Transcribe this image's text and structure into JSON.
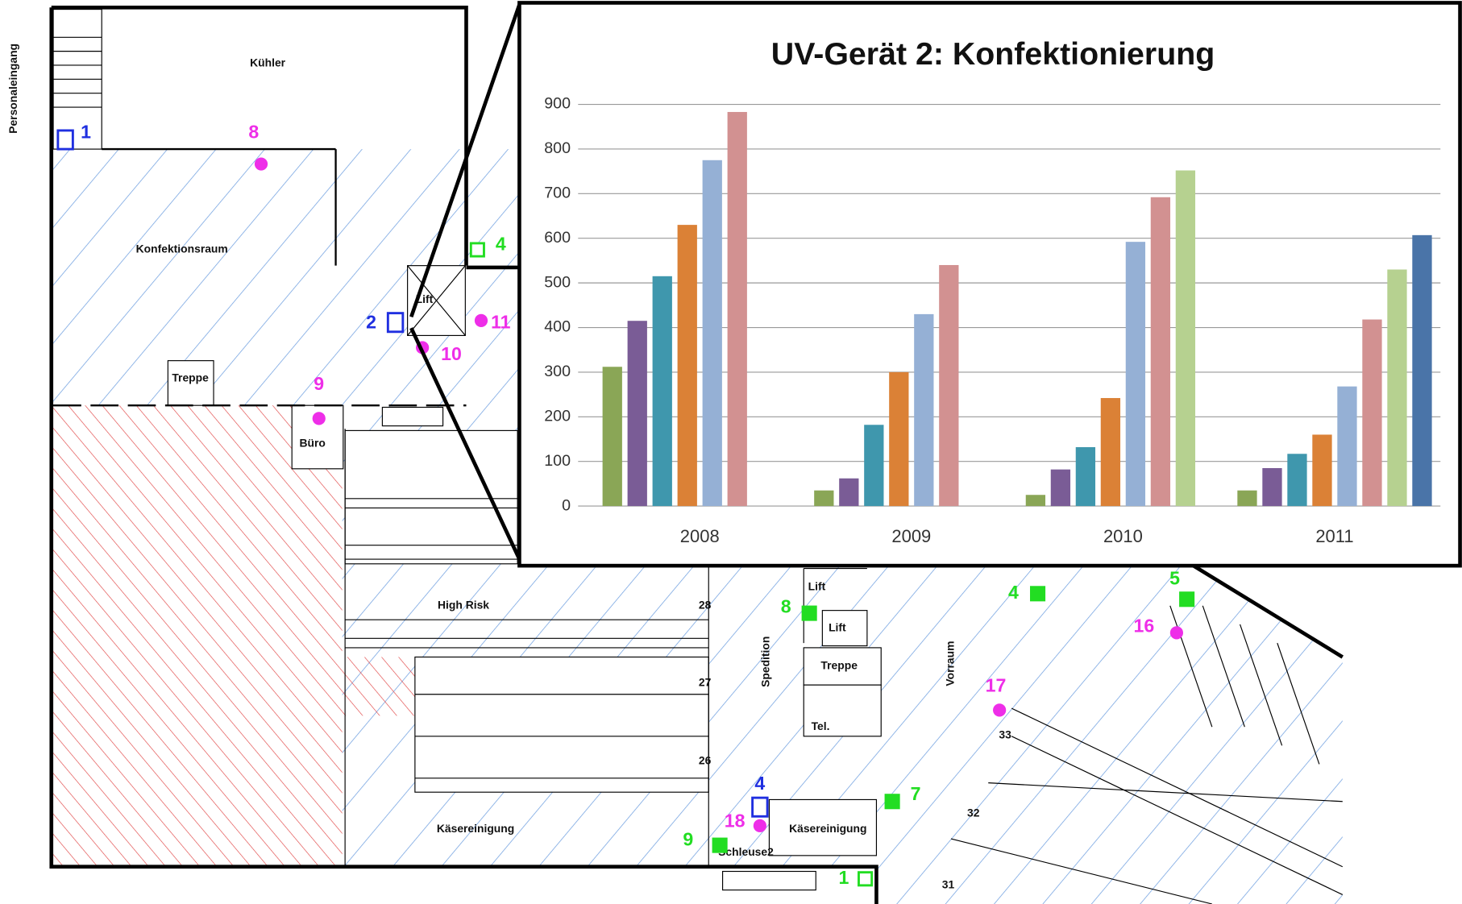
{
  "chart_data": {
    "type": "bar",
    "title": "UV-Gerät 2: Konfektionierung",
    "categories": [
      "2008",
      "2009",
      "2010",
      "2011"
    ],
    "series": [
      {
        "color": "#8aa656",
        "values": [
          312,
          35,
          25,
          35
        ]
      },
      {
        "color": "#7a5c96",
        "values": [
          415,
          62,
          82,
          85
        ]
      },
      {
        "color": "#3f97ad",
        "values": [
          515,
          182,
          132,
          117
        ]
      },
      {
        "color": "#db8136",
        "values": [
          630,
          300,
          242,
          160
        ]
      },
      {
        "color": "#95b0d5",
        "values": [
          775,
          430,
          592,
          268
        ]
      },
      {
        "color": "#d29191",
        "values": [
          883,
          540,
          692,
          418
        ]
      },
      {
        "color": "#b6d190",
        "values": [
          null,
          null,
          752,
          530
        ]
      },
      {
        "color": "#4a74a8",
        "values": [
          null,
          null,
          null,
          607
        ]
      }
    ],
    "ylim": [
      0,
      900
    ],
    "yticks": [
      0,
      100,
      200,
      300,
      400,
      500,
      600,
      700,
      800,
      900
    ],
    "grid": true
  },
  "floor_plan": {
    "rooms": [
      "Personaleingang",
      "Kühler",
      "Konfektionsraum",
      "Treppe",
      "Büro",
      "Lift",
      "High Risk",
      "Käsereinigung",
      "Käsereinigung",
      "Spedition",
      "Vorraum",
      "Lift",
      "Lift",
      "Treppe",
      "Tel.",
      "Schleuse2",
      "28",
      "27",
      "26",
      "33",
      "32",
      "31"
    ],
    "pink_points": [
      "8",
      "9",
      "10",
      "11",
      "16",
      "17",
      "18"
    ],
    "blue_devices": [
      "1",
      "2",
      "4"
    ],
    "green_points": [
      "4",
      "4",
      "5",
      "7",
      "8",
      "9",
      "1"
    ]
  }
}
